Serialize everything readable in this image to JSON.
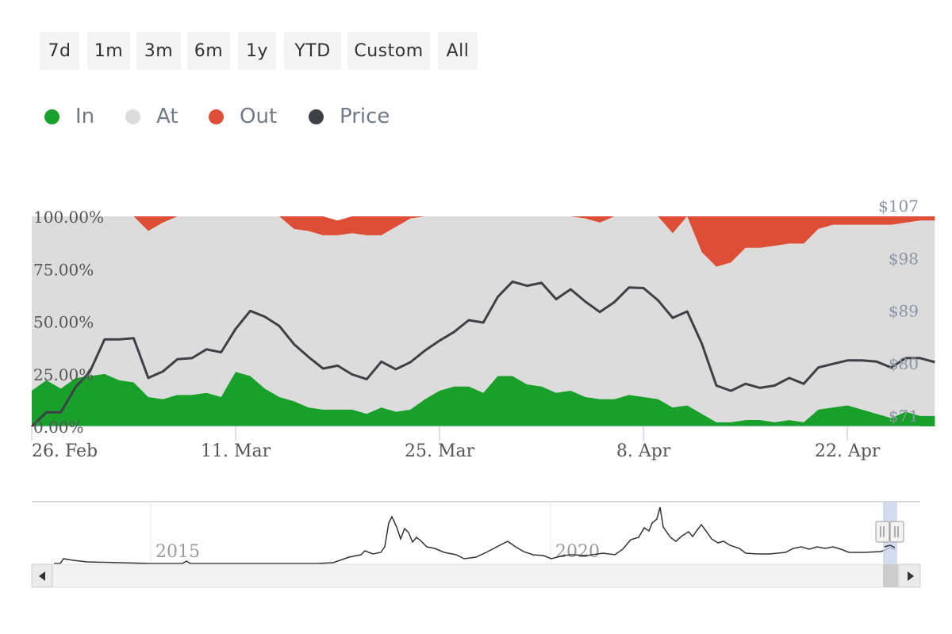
{
  "range_selector": {
    "buttons": [
      {
        "label": "7d"
      },
      {
        "label": "1m"
      },
      {
        "label": "3m"
      },
      {
        "label": "6m"
      },
      {
        "label": "1y"
      },
      {
        "label": "YTD"
      },
      {
        "label": "Custom"
      },
      {
        "label": "All"
      }
    ]
  },
  "legend": {
    "items": [
      {
        "label": "In",
        "color": "#19a02a"
      },
      {
        "label": "At",
        "color": "#dcdcdc"
      },
      {
        "label": "Out",
        "color": "#dc4e35"
      },
      {
        "label": "Price",
        "color": "#3d4146"
      }
    ]
  },
  "navigator": {
    "labels": [
      "2015",
      "2020"
    ],
    "scroll_left_icon": "triangle-left-icon",
    "scroll_right_icon": "triangle-right-icon"
  },
  "chart_data": {
    "type": "area",
    "stacking": "percent",
    "grid": true,
    "x_tick_labels": [
      "26. Feb",
      "11. Mar",
      "25. Mar",
      "8. Apr",
      "22. Apr"
    ],
    "y_left_ticks": [
      "0.00%",
      "25.00%",
      "50.00%",
      "75.00%",
      "100.00%"
    ],
    "y_right_ticks": [
      "$71",
      "$80",
      "$89",
      "$98",
      "$107"
    ],
    "y_left_range": [
      0,
      100
    ],
    "y_right_range": [
      71,
      107
    ],
    "x_range": [
      "2024-02-26",
      "2024-04-27"
    ],
    "x": [
      "2024-02-26",
      "2024-02-27",
      "2024-02-28",
      "2024-02-29",
      "2024-03-01",
      "2024-03-02",
      "2024-03-03",
      "2024-03-04",
      "2024-03-05",
      "2024-03-06",
      "2024-03-07",
      "2024-03-08",
      "2024-03-09",
      "2024-03-10",
      "2024-03-11",
      "2024-03-12",
      "2024-03-13",
      "2024-03-14",
      "2024-03-15",
      "2024-03-16",
      "2024-03-17",
      "2024-03-18",
      "2024-03-19",
      "2024-03-20",
      "2024-03-21",
      "2024-03-22",
      "2024-03-23",
      "2024-03-24",
      "2024-03-25",
      "2024-03-26",
      "2024-03-27",
      "2024-03-28",
      "2024-03-29",
      "2024-03-30",
      "2024-03-31",
      "2024-04-01",
      "2024-04-02",
      "2024-04-03",
      "2024-04-04",
      "2024-04-05",
      "2024-04-06",
      "2024-04-07",
      "2024-04-08",
      "2024-04-09",
      "2024-04-10",
      "2024-04-11",
      "2024-04-12",
      "2024-04-13",
      "2024-04-14",
      "2024-04-15",
      "2024-04-16",
      "2024-04-17",
      "2024-04-18",
      "2024-04-19",
      "2024-04-20",
      "2024-04-21",
      "2024-04-22",
      "2024-04-23",
      "2024-04-24",
      "2024-04-25",
      "2024-04-26",
      "2024-04-27",
      "2024-04-28"
    ],
    "series": [
      {
        "name": "In",
        "unit": "%",
        "color": "#19a02a",
        "values": [
          17,
          22,
          18,
          23,
          24,
          25,
          22,
          21,
          14,
          13,
          15,
          15,
          16,
          14,
          26,
          24,
          18,
          14,
          12,
          9,
          8,
          8,
          8,
          6,
          9,
          7,
          8,
          13,
          17,
          19,
          19,
          16,
          24,
          24,
          20,
          19,
          16,
          17,
          14,
          13,
          13,
          15,
          14,
          13,
          9,
          10,
          6,
          2,
          2,
          3,
          3,
          2,
          3,
          2,
          8,
          9,
          10,
          8,
          6,
          4,
          7,
          5,
          5
        ]
      },
      {
        "name": "At",
        "unit": "%",
        "color": "#dcdcdc",
        "values": [
          83,
          78,
          82,
          77,
          76,
          75,
          78,
          79,
          79,
          84,
          85,
          85,
          84,
          86,
          74,
          76,
          82,
          86,
          82,
          84,
          83,
          83,
          84,
          85,
          82,
          88,
          91,
          87,
          83,
          81,
          81,
          84,
          76,
          76,
          80,
          81,
          84,
          83,
          85,
          84,
          87,
          85,
          86,
          87,
          83,
          90,
          77,
          74,
          76,
          82,
          82,
          84,
          84,
          85,
          86,
          87,
          86,
          88,
          90,
          92,
          90,
          93,
          93
        ]
      },
      {
        "name": "Out",
        "unit": "%",
        "color": "#dc4e35",
        "values": [
          0,
          0,
          0,
          0,
          0,
          0,
          0,
          0,
          7,
          3,
          0,
          0,
          0,
          0,
          0,
          0,
          0,
          0,
          6,
          7,
          9,
          7,
          8,
          9,
          9,
          5,
          1,
          0,
          0,
          0,
          0,
          0,
          0,
          0,
          0,
          0,
          0,
          0,
          1,
          3,
          0,
          0,
          0,
          0,
          8,
          0,
          17,
          24,
          22,
          15,
          15,
          14,
          13,
          13,
          6,
          4,
          4,
          4,
          4,
          4,
          3,
          2,
          2
        ]
      },
      {
        "name": "Price",
        "unit": "$",
        "color": "#3d4146",
        "values": [
          71.0,
          73.4,
          73.4,
          77.7,
          80.4,
          85.9,
          85.9,
          86.1,
          79.3,
          80.4,
          82.5,
          82.7,
          84.2,
          83.7,
          87.7,
          90.8,
          89.8,
          88.2,
          85.1,
          82.9,
          80.9,
          81.4,
          79.9,
          79.1,
          82.1,
          80.8,
          82.0,
          84.0,
          85.7,
          87.2,
          89.2,
          88.8,
          93.2,
          95.8,
          95.1,
          95.6,
          92.8,
          94.5,
          92.4,
          90.6,
          92.3,
          94.8,
          94.7,
          92.6,
          89.6,
          90.7,
          85.2,
          78.0,
          77.1,
          78.3,
          77.6,
          78.0,
          79.3,
          78.3,
          81.1,
          81.7,
          82.3,
          82.3,
          82.1,
          81.1,
          82.7,
          82.7,
          82.0
        ]
      }
    ]
  }
}
